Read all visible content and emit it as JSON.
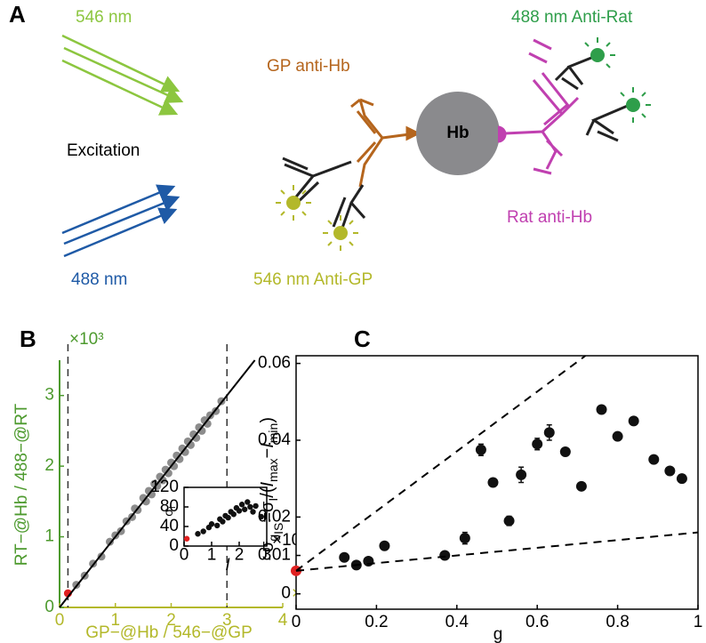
{
  "panel_a": {
    "label": "A",
    "excitation": "Excitation",
    "beam_546": "546 nm",
    "beam_488": "488 nm",
    "gp_anti_hb": "GP anti-Hb",
    "hb": "Hb",
    "anti_rat": "488 nm Anti-Rat",
    "rat_anti_hb": "Rat anti-Hb",
    "anti_gp": "546 nm Anti-GP"
  },
  "chart_data": [
    {
      "type": "scatter",
      "panel_label": "B",
      "x_label": "GP−@Hb / 546−@GP",
      "y_label": "RT−@Hb / 488−@RT",
      "x_multiplier": "×10³",
      "y_multiplier": "×10³",
      "x_color": "#b3b82a",
      "y_color": "#4d9a2e",
      "frame": "axes",
      "xlim": [
        0,
        4
      ],
      "xticks": [
        0,
        1,
        2,
        3,
        4
      ],
      "ylim": [
        0,
        3.5
      ],
      "yticks": [
        0,
        1,
        2,
        3
      ],
      "series": [
        {
          "color": "#8c8c8c",
          "x": [
            0.3,
            0.45,
            0.6,
            0.75,
            0.9,
            1.0,
            1.1,
            1.2,
            1.3,
            1.35,
            1.4,
            1.5,
            1.55,
            1.6,
            1.65,
            1.7,
            1.75,
            1.8,
            1.85,
            1.9,
            1.95,
            2.0,
            2.05,
            2.1,
            2.15,
            2.2,
            2.25,
            2.3,
            2.35,
            2.4,
            2.45,
            2.5,
            2.55,
            2.6,
            2.65,
            2.7,
            2.8,
            2.9
          ],
          "values": [
            0.32,
            0.45,
            0.62,
            0.72,
            0.93,
            1.02,
            1.08,
            1.22,
            1.28,
            1.4,
            1.38,
            1.55,
            1.5,
            1.65,
            1.6,
            1.75,
            1.72,
            1.85,
            1.8,
            1.95,
            1.9,
            2.05,
            2.0,
            2.15,
            2.1,
            2.25,
            2.2,
            2.35,
            2.3,
            2.45,
            2.4,
            2.55,
            2.5,
            2.65,
            2.6,
            2.72,
            2.78,
            2.92
          ]
        },
        {
          "color": "#e02020",
          "x": [
            0.15
          ],
          "values": [
            0.2
          ]
        }
      ],
      "lines": [
        {
          "x": [
            0,
            3.5
          ],
          "y": [
            0,
            3.5
          ],
          "dashed": false
        }
      ],
      "vlines": [
        0.15,
        3
      ]
    },
    {
      "type": "scatter",
      "y_label_parts": [
        {
          "text": "σ"
        },
        {
          "text": "I",
          "sub": 1
        }
      ],
      "x_label": "I",
      "x_multiplier": "×10³",
      "x_color": "#000000",
      "y_color": "#000000",
      "frame": "box",
      "xlim": [
        0,
        3
      ],
      "xticks": [
        0,
        1,
        2,
        3
      ],
      "ylim": [
        0,
        120
      ],
      "yticks": [
        0,
        40,
        80,
        120
      ],
      "series": [
        {
          "color": "#111111",
          "x": [
            0.5,
            0.7,
            0.9,
            1.0,
            1.2,
            1.3,
            1.4,
            1.5,
            1.6,
            1.7,
            1.8,
            1.9,
            2.0,
            2.1,
            2.2,
            2.3,
            2.4,
            2.5,
            2.6,
            2.8
          ],
          "values": [
            25,
            30,
            38,
            45,
            42,
            55,
            50,
            62,
            58,
            70,
            65,
            78,
            72,
            85,
            75,
            90,
            80,
            70,
            82,
            60
          ]
        },
        {
          "color": "#e02020",
          "x": [
            0.1
          ],
          "values": [
            15
          ]
        }
      ]
    },
    {
      "type": "scatter",
      "panel_label": "C",
      "x_label": "g",
      "y_label_parts": [
        {
          "text": "σ"
        },
        {
          "text": "g",
          "sub": 1
        },
        {
          "text": "IS",
          "sub": 2
        },
        {
          "text": "=σ"
        },
        {
          "text": "I",
          "sub": 1
        },
        {
          "text": "/("
        },
        {
          "text": "I",
          "italic": true
        },
        {
          "text": "max",
          "sub": 1
        },
        {
          "text": "−"
        },
        {
          "text": "I",
          "italic": true
        },
        {
          "text": "min",
          "sub": 1
        },
        {
          "text": ")"
        }
      ],
      "x_color": "#000000",
      "y_color": "#000000",
      "frame": "box",
      "xlim": [
        0,
        1
      ],
      "xticks": [
        0,
        0.2,
        0.4,
        0.6,
        0.8,
        1
      ],
      "ylim": [
        -0.004,
        0.062
      ],
      "yticks": [
        0,
        0.01,
        0.02,
        0.04,
        0.06
      ],
      "series": [
        {
          "color": "#111111",
          "x": [
            0.12,
            0.15,
            0.18,
            0.22,
            0.37,
            0.42,
            0.46,
            0.49,
            0.53,
            0.56,
            0.6,
            0.63,
            0.67,
            0.71,
            0.76,
            0.8,
            0.84,
            0.89,
            0.93,
            0.96
          ],
          "values": [
            0.0095,
            0.0075,
            0.0085,
            0.0125,
            0.01,
            0.0145,
            0.0375,
            0.029,
            0.019,
            0.031,
            0.039,
            0.042,
            0.037,
            0.028,
            0.048,
            0.041,
            0.045,
            0.035,
            0.032,
            0.03
          ],
          "errors": [
            0.001,
            0.0008,
            0.0008,
            0.001,
            0.0008,
            0.0015,
            0.0015,
            0.001,
            0.0012,
            0.002,
            0.0015,
            0.002,
            0.001,
            0.001,
            0.001,
            0.001,
            0.001,
            0.001,
            0.001,
            0.001
          ]
        },
        {
          "color": "#e02020",
          "x": [
            0
          ],
          "values": [
            0.006
          ]
        }
      ],
      "lines": [
        {
          "x": [
            0,
            0.72
          ],
          "y": [
            0.006,
            0.062
          ],
          "dashed": true
        },
        {
          "x": [
            0,
            1
          ],
          "y": [
            0.006,
            0.016
          ],
          "dashed": true
        }
      ]
    }
  ]
}
